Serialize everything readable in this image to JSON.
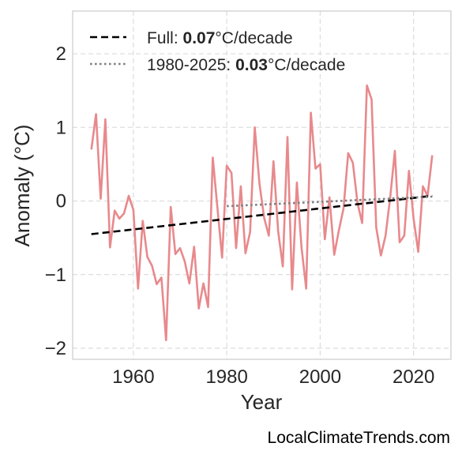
{
  "chart_data": {
    "type": "line",
    "title": "",
    "xlabel": "Year",
    "ylabel": "Anomaly (°C)",
    "xlim": [
      1947,
      2028
    ],
    "ylim": [
      -2.15,
      2.58
    ],
    "x_ticks": [
      1960,
      1980,
      2000,
      2020
    ],
    "x_tick_labels": [
      "1960",
      "1980",
      "2000",
      "2020"
    ],
    "y_ticks": [
      -2,
      -1,
      0,
      1,
      2
    ],
    "y_tick_labels": [
      "−2",
      "−1",
      "0",
      "1",
      "2"
    ],
    "grid": true,
    "legend_position": "top-left",
    "series": [
      {
        "x": [
          1951,
          1952,
          1953,
          1954,
          1955,
          1956,
          1957,
          1958,
          1959,
          1960,
          1961,
          1962,
          1963,
          1964,
          1965,
          1966,
          1967,
          1968,
          1969,
          1970,
          1971,
          1972,
          1973,
          1974,
          1975,
          1976,
          1977,
          1978,
          1979,
          1980,
          1981,
          1982,
          1983,
          1984,
          1985,
          1986,
          1987,
          1988,
          1989,
          1990,
          1991,
          1992,
          1993,
          1994,
          1995,
          1996,
          1997,
          1998,
          1999,
          2000,
          2001,
          2002,
          2003,
          2004,
          2005,
          2006,
          2007,
          2008,
          2009,
          2010,
          2011,
          2012,
          2013,
          2014,
          2015,
          2016,
          2017,
          2018,
          2019,
          2020,
          2021,
          2022,
          2023,
          2024
        ],
        "values": [
          0.7,
          1.18,
          0.03,
          1.11,
          -0.63,
          -0.13,
          -0.24,
          -0.17,
          0.07,
          -0.12,
          -1.19,
          -0.27,
          -0.76,
          -0.88,
          -1.13,
          -1.04,
          -1.89,
          -0.08,
          -0.72,
          -0.64,
          -0.82,
          -1.12,
          -0.62,
          -1.46,
          -1.12,
          -1.44,
          0.59,
          -0.09,
          -0.77,
          0.48,
          0.38,
          -0.64,
          0.2,
          -0.71,
          -0.42,
          1.0,
          0.24,
          -0.23,
          -0.47,
          0.54,
          -0.41,
          -0.89,
          0.87,
          -1.2,
          0.25,
          -0.63,
          -1.19,
          1.2,
          0.44,
          0.5,
          -0.52,
          0.05,
          -0.73,
          -0.4,
          -0.1,
          0.65,
          0.52,
          -0.03,
          -0.3,
          1.57,
          1.38,
          -0.36,
          -0.74,
          -0.47,
          0.05,
          0.68,
          -0.56,
          -0.47,
          0.41,
          -0.24,
          -0.69,
          0.2,
          0.07,
          0.62
        ],
        "color": "#e8898c"
      },
      {
        "name": "Full",
        "trend_rate": "0.07",
        "unit": "°C/decade",
        "style": "dashed",
        "color": "#000000",
        "x": [
          1951,
          2024
        ],
        "values": [
          -0.45,
          0.07
        ]
      },
      {
        "name": "1980-2025",
        "trend_rate": "0.03",
        "unit": "°C/decade",
        "style": "dotted",
        "color": "#808080",
        "x": [
          1980,
          2024
        ],
        "values": [
          -0.07,
          0.06
        ]
      }
    ]
  },
  "legend": {
    "full_prefix": "Full: ",
    "full_value": "0.07",
    "full_unit": "°C/decade",
    "recent_prefix": "1980-2025: ",
    "recent_value": "0.03",
    "recent_unit": "°C/decade"
  },
  "footer": {
    "credit": "LocalClimateTrends.com"
  }
}
